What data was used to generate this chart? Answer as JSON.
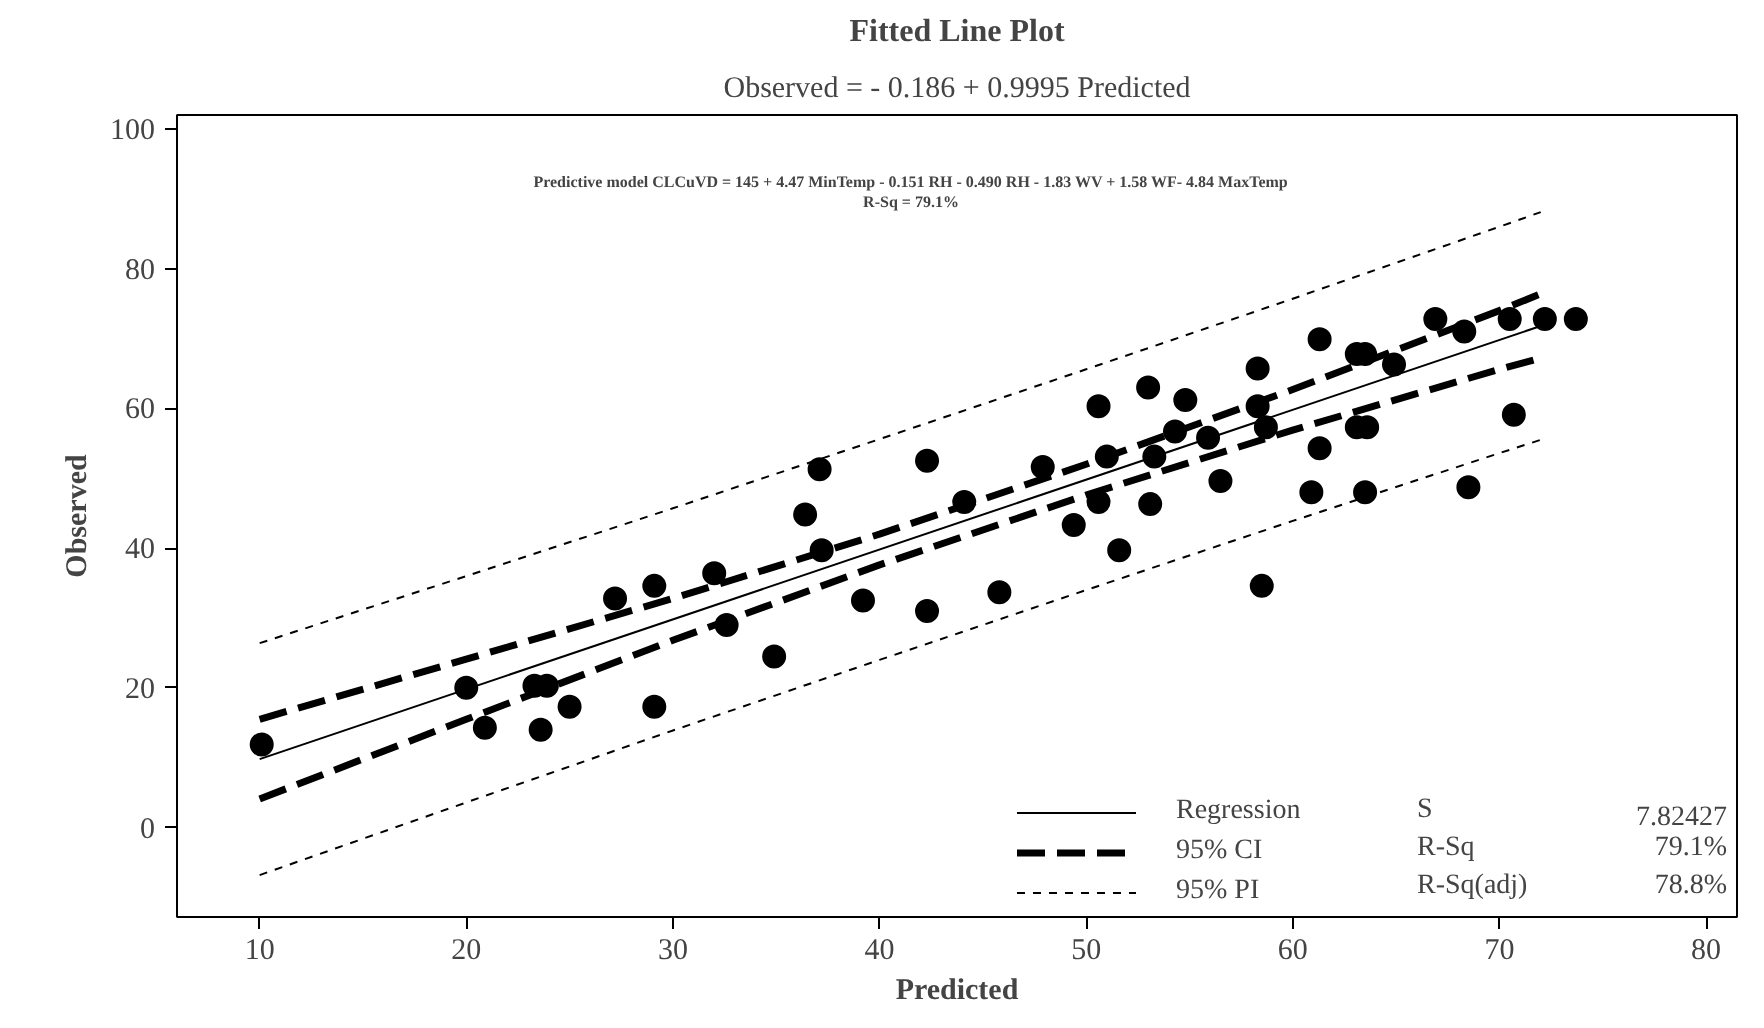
{
  "chart_data": {
    "type": "scatter",
    "title": "Fitted Line Plot",
    "subtitle": "Observed = - 0.186 + 0.9995 Predicted",
    "xlabel": "Predicted",
    "ylabel": "Observed",
    "xlim": [
      6,
      81.5
    ],
    "ylim": [
      -12.8,
      102
    ],
    "xticks": [
      10,
      20,
      30,
      40,
      50,
      60,
      70,
      80
    ],
    "yticks": [
      0,
      20,
      40,
      60,
      80,
      100
    ],
    "grid": false,
    "legend": "bottom right",
    "annotations": [
      "Predictive model CLCuVD = 145 + 4.47 MinTemp - 0.151 RH - 0.490 RH - 1.83 WV + 1.58 WF- 4.84 MaxTemp",
      "R-Sq = 79.1%",
      "S",
      "7.82427",
      "R-Sq",
      "79.1%",
      "R-Sq(adj)",
      "78.8%"
    ],
    "series": [
      {
        "marker": "circle",
        "color": "#000000",
        "x": [
          10.1,
          20,
          20.9,
          23.3,
          23.9,
          23.6,
          25,
          27.2,
          29.1,
          29.1,
          32,
          32.6,
          34.9,
          36.4,
          37.1,
          37.2,
          39.2,
          42.3,
          42.3,
          44.1,
          45.8,
          47.9,
          49.4,
          50.6,
          50.6,
          51,
          51.6,
          53,
          53.1,
          53.3,
          54.3,
          54.8,
          55.9,
          56.5,
          58.3,
          58.3,
          58.7,
          58.5,
          60.9,
          61.3,
          61.3,
          63.1,
          63.5,
          63.1,
          63.6,
          63.5,
          64.9,
          66.9,
          68.3,
          68.5,
          70.5,
          70.7,
          72.2,
          73.7
        ],
        "values": [
          11.9,
          20,
          14.3,
          20.3,
          20.3,
          14,
          17.3,
          32.8,
          34.6,
          17.3,
          36.4,
          29,
          24.5,
          44.8,
          51.3,
          39.7,
          32.5,
          52.5,
          31,
          46.6,
          33.7,
          51.6,
          43.3,
          60.3,
          46.6,
          53.1,
          39.7,
          63,
          46.3,
          53.1,
          56.7,
          61.2,
          55.8,
          49.6,
          65.7,
          60.3,
          57.3,
          34.6,
          48,
          54.3,
          69.9,
          67.8,
          67.8,
          57.3,
          57.3,
          48,
          66.3,
          72.8,
          71,
          48.7,
          72.8,
          59.1,
          72.8,
          72.8
        ]
      },
      {
        "type": "line",
        "name": "Regression",
        "color": "#000000",
        "line_style": "solid",
        "x": [
          10,
          72
        ],
        "values": [
          9.8,
          71.8
        ]
      },
      {
        "type": "line",
        "name": "95% CI",
        "color": "#000000",
        "line_style": "dashed",
        "x": [
          10,
          20,
          30,
          40,
          50,
          60,
          70,
          72
        ],
        "values": [
          15.5,
          24.1,
          32.8,
          42.0,
          52.0,
          62.7,
          74.0,
          76.4
        ]
      },
      {
        "type": "line",
        "color": "#000000",
        "line_style": "dashed",
        "x": [
          10,
          20,
          30,
          40,
          50,
          60,
          70,
          72
        ],
        "values": [
          4.1,
          15.5,
          26.8,
          37.6,
          47.6,
          56.9,
          65.6,
          67.2
        ]
      },
      {
        "type": "line",
        "name": "95% PI",
        "color": "#000000",
        "line_style": "dotted",
        "x": [
          10,
          20,
          30,
          40,
          50,
          60,
          70,
          72
        ],
        "values": [
          26.4,
          36.0,
          45.7,
          55.6,
          65.6,
          75.7,
          86.0,
          88.1
        ]
      },
      {
        "type": "line",
        "color": "#000000",
        "line_style": "dotted",
        "x": [
          10,
          20,
          30,
          40,
          50,
          60,
          70,
          72
        ],
        "values": [
          -6.8,
          3.6,
          13.9,
          24.0,
          34.0,
          43.9,
          53.6,
          55.5
        ]
      }
    ]
  }
}
